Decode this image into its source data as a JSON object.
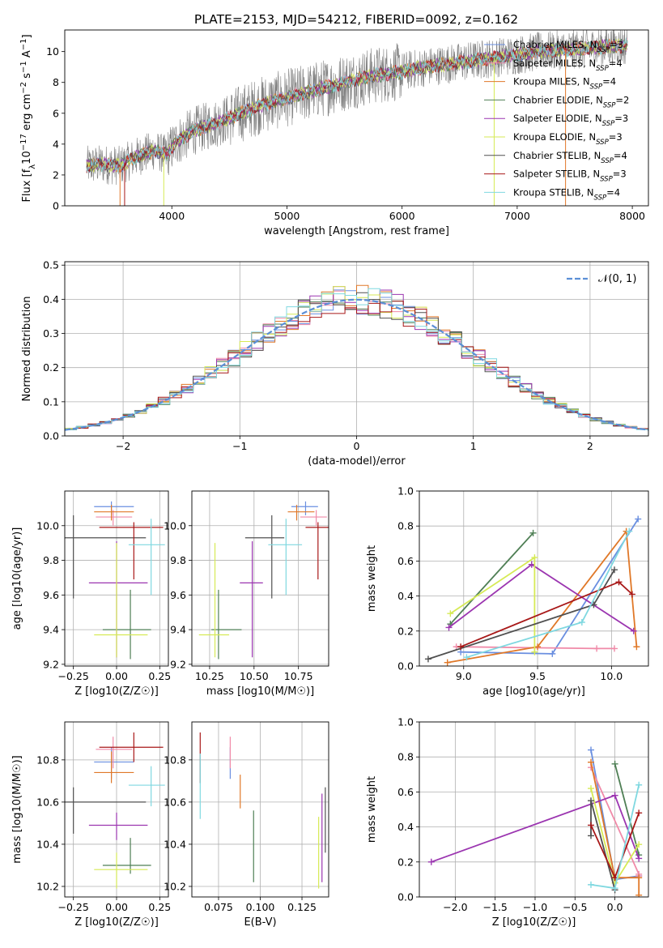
{
  "title": "PLATE=2153, MJD=54212, FIBERID=0092, z=0.162",
  "palette": {
    "Chabrier MILES": "#6a8fe0",
    "Salpeter MILES": "#f08aa8",
    "Kroupa MILES": "#e07828",
    "Chabrier ELODIE": "#4f7f55",
    "Salpeter ELODIE": "#9b35b0",
    "Kroupa ELODIE": "#d6ea55",
    "Chabrier STELIB": "#505050",
    "Salpeter STELIB": "#a81818",
    "Kroupa STELIB": "#7fd8e0",
    "data": "#808080",
    "gaussian": "#5b8fd6"
  },
  "chart_data": [
    {
      "id": "spectrum",
      "type": "line",
      "title": "PLATE=2153, MJD=54212, FIBERID=0092, z=0.162",
      "xlabel": "wavelength [Angstrom, rest frame]",
      "ylabel": "Flux [f_λ 10^-17 erg cm^-2 s^-1 A^-1]",
      "xlim": [
        3070,
        8140
      ],
      "ylim": [
        0,
        11.4
      ],
      "xticks": [
        4000,
        5000,
        6000,
        7000,
        8000
      ],
      "yticks": [
        0,
        2,
        4,
        6,
        8,
        10
      ],
      "legend_position": "top-right",
      "continuum_x": [
        3260,
        3400,
        3550,
        3700,
        3850,
        3950,
        4050,
        4200,
        4400,
        4600,
        4800,
        5000,
        5200,
        5400,
        5600,
        5800,
        6000,
        6200,
        6400,
        6600,
        6800,
        7000,
        7200,
        7400,
        7600,
        7800,
        7950
      ],
      "continuum_y": [
        2.6,
        2.7,
        2.6,
        3.2,
        3.6,
        3.3,
        4.2,
        4.9,
        5.4,
        6.0,
        6.6,
        7.0,
        7.4,
        7.8,
        8.2,
        8.5,
        8.7,
        9.0,
        9.2,
        9.4,
        9.6,
        9.8,
        10.0,
        10.1,
        10.2,
        10.35,
        10.4
      ],
      "series": [
        {
          "name": "Chabrier MILES, N_SSP=3"
        },
        {
          "name": "Salpeter MILES, N_SSP=4"
        },
        {
          "name": "Kroupa MILES, N_SSP=4"
        },
        {
          "name": "Chabrier ELODIE, N_SSP=2"
        },
        {
          "name": "Salpeter ELODIE, N_SSP=3"
        },
        {
          "name": "Kroupa ELODIE, N_SSP=3"
        },
        {
          "name": "Chabrier STELIB, N_SSP=4"
        },
        {
          "name": "Salpeter STELIB, N_SSP=3"
        },
        {
          "name": "Kroupa STELIB, N_SSP=4"
        }
      ]
    },
    {
      "id": "residuals",
      "type": "histogram",
      "xlabel": "(data-model)/error",
      "ylabel": "Normed distribution",
      "xlim": [
        -2.5,
        2.5
      ],
      "ylim": [
        0,
        0.51
      ],
      "xticks": [
        -2,
        -1,
        0,
        1,
        2
      ],
      "yticks": [
        0,
        0.1,
        0.2,
        0.3,
        0.4,
        0.5
      ],
      "bin_width": 0.1,
      "reference_curve": "N(0,1)",
      "legend": [
        {
          "name": "𝒩(0, 1)",
          "style": "dashed"
        }
      ],
      "legend_position": "top-right"
    },
    {
      "id": "age-vs-Z",
      "type": "errorbar",
      "xlabel": "Z [log10(Z/Z☉)]",
      "ylabel": "age [log10(age/yr)]",
      "xlim": [
        -0.3,
        0.3
      ],
      "ylim": [
        9.19,
        10.2
      ],
      "xticks": [
        -0.25,
        0.0,
        0.25
      ],
      "yticks": [
        9.2,
        9.4,
        9.6,
        9.8,
        10.0
      ],
      "points": [
        {
          "model": "Chabrier MILES",
          "x": -0.03,
          "xerr": [
            0.1,
            0.13
          ],
          "y": 10.11,
          "yerr": [
            0.05,
            0.03
          ]
        },
        {
          "model": "Salpeter MILES",
          "x": -0.02,
          "xerr": [
            0.1,
            0.11
          ],
          "y": 10.05,
          "yerr": [
            0.05,
            0.04
          ]
        },
        {
          "model": "Kroupa MILES",
          "x": -0.03,
          "xerr": [
            0.1,
            0.13
          ],
          "y": 10.08,
          "yerr": [
            0.05,
            0.04
          ]
        },
        {
          "model": "Chabrier ELODIE",
          "x": 0.08,
          "xerr": [
            0.16,
            0.12
          ],
          "y": 9.4,
          "yerr": [
            0.17,
            0.23
          ]
        },
        {
          "model": "Salpeter ELODIE",
          "x": 0.0,
          "xerr": [
            0.16,
            0.18
          ],
          "y": 9.67,
          "yerr": [
            0.43,
            0.24
          ]
        },
        {
          "model": "Kroupa ELODIE",
          "x": 0.0,
          "xerr": [
            0.13,
            0.18
          ],
          "y": 9.37,
          "yerr": [
            0.13,
            0.53
          ]
        },
        {
          "model": "Chabrier STELIB",
          "x": -0.25,
          "xerr": [
            0.05,
            0.42
          ],
          "y": 9.93,
          "yerr": [
            0.35,
            0.13
          ]
        },
        {
          "model": "Salpeter STELIB",
          "x": 0.1,
          "xerr": [
            0.2,
            0.17
          ],
          "y": 9.99,
          "yerr": [
            0.3,
            0.03
          ]
        },
        {
          "model": "Kroupa STELIB",
          "x": 0.2,
          "xerr": [
            0.13,
            0.08
          ],
          "y": 9.89,
          "yerr": [
            0.29,
            0.15
          ]
        }
      ]
    },
    {
      "id": "age-vs-mass",
      "type": "errorbar",
      "xlabel": "mass [log10(M/M☉)]",
      "ylabel": "",
      "xlim": [
        10.15,
        10.92
      ],
      "ylim": [
        9.19,
        10.2
      ],
      "xticks": [
        10.25,
        10.5,
        10.75
      ],
      "yticks": [
        9.2,
        9.4,
        9.6,
        9.8,
        10.0
      ],
      "points": [
        {
          "model": "Chabrier MILES",
          "x": 10.79,
          "xerr": [
            0.08,
            0.07
          ],
          "y": 10.11,
          "yerr": [
            0.05,
            0.03
          ]
        },
        {
          "model": "Salpeter MILES",
          "x": 10.85,
          "xerr": [
            0.09,
            0.06
          ],
          "y": 10.05,
          "yerr": [
            0.05,
            0.04
          ]
        },
        {
          "model": "Kroupa MILES",
          "x": 10.74,
          "xerr": [
            0.05,
            0.1
          ],
          "y": 10.08,
          "yerr": [
            0.05,
            0.04
          ]
        },
        {
          "model": "Chabrier ELODIE",
          "x": 10.3,
          "xerr": [
            0.04,
            0.13
          ],
          "y": 9.4,
          "yerr": [
            0.17,
            0.23
          ]
        },
        {
          "model": "Salpeter ELODIE",
          "x": 10.49,
          "xerr": [
            0.07,
            0.06
          ],
          "y": 9.67,
          "yerr": [
            0.43,
            0.24
          ]
        },
        {
          "model": "Kroupa ELODIE",
          "x": 10.28,
          "xerr": [
            0.09,
            0.08
          ],
          "y": 9.37,
          "yerr": [
            0.13,
            0.53
          ]
        },
        {
          "model": "Chabrier STELIB",
          "x": 10.6,
          "xerr": [
            0.15,
            0.07
          ],
          "y": 9.93,
          "yerr": [
            0.35,
            0.13
          ]
        },
        {
          "model": "Salpeter STELIB",
          "x": 10.86,
          "xerr": [
            0.07,
            0.07
          ],
          "y": 9.99,
          "yerr": [
            0.3,
            0.03
          ]
        },
        {
          "model": "Kroupa STELIB",
          "x": 10.68,
          "xerr": [
            0.1,
            0.09
          ],
          "y": 9.89,
          "yerr": [
            0.29,
            0.15
          ]
        }
      ]
    },
    {
      "id": "weight-vs-age",
      "type": "line",
      "xlabel": "age [log10(age/yr)]",
      "ylabel": "mass weight",
      "xlim": [
        8.7,
        10.25
      ],
      "ylim": [
        0,
        1
      ],
      "xticks": [
        9.0,
        9.5,
        10.0
      ],
      "yticks": [
        0.0,
        0.2,
        0.4,
        0.6,
        0.8,
        1.0
      ],
      "series": [
        {
          "model": "Chabrier MILES",
          "x": [
            8.98,
            9.6,
            10.18
          ],
          "y": [
            0.08,
            0.07,
            0.84
          ]
        },
        {
          "model": "Salpeter MILES",
          "x": [
            8.95,
            9.9,
            10.02
          ],
          "y": [
            0.11,
            0.1,
            0.1
          ]
        },
        {
          "model": "Kroupa MILES",
          "x": [
            8.89,
            9.5,
            10.1,
            10.17
          ],
          "y": [
            0.02,
            0.11,
            0.77,
            0.11
          ]
        },
        {
          "model": "Chabrier ELODIE",
          "x": [
            8.91,
            9.47
          ],
          "y": [
            0.24,
            0.76
          ]
        },
        {
          "model": "Salpeter ELODIE",
          "x": [
            8.9,
            9.46,
            10.15
          ],
          "y": [
            0.22,
            0.58,
            0.2
          ]
        },
        {
          "model": "Kroupa ELODIE",
          "x": [
            8.91,
            9.48,
            9.48
          ],
          "y": [
            0.3,
            0.62,
            0.08
          ]
        },
        {
          "model": "Chabrier STELIB",
          "x": [
            8.76,
            9.88,
            10.02
          ],
          "y": [
            0.04,
            0.35,
            0.55
          ]
        },
        {
          "model": "Salpeter STELIB",
          "x": [
            8.98,
            10.05,
            10.14
          ],
          "y": [
            0.11,
            0.48,
            0.41
          ]
        },
        {
          "model": "Kroupa STELIB",
          "x": [
            9.02,
            9.8,
            10.12
          ],
          "y": [
            0.05,
            0.25,
            0.77
          ]
        }
      ]
    },
    {
      "id": "mass-vs-Z",
      "type": "errorbar",
      "xlabel": "Z [log10(Z/Z☉)]",
      "ylabel": "mass [log10(M/M☉)]",
      "xlim": [
        -0.3,
        0.3
      ],
      "ylim": [
        10.15,
        10.98
      ],
      "xticks": [
        -0.25,
        0.0,
        0.25
      ],
      "yticks": [
        10.2,
        10.4,
        10.6,
        10.8
      ],
      "points": [
        {
          "model": "Chabrier MILES",
          "x": -0.03,
          "xerr": [
            0.1,
            0.13
          ],
          "y": 10.79,
          "yerr": [
            0.08,
            0.07
          ]
        },
        {
          "model": "Salpeter MILES",
          "x": -0.02,
          "xerr": [
            0.1,
            0.11
          ],
          "y": 10.85,
          "yerr": [
            0.09,
            0.06
          ]
        },
        {
          "model": "Kroupa MILES",
          "x": -0.03,
          "xerr": [
            0.1,
            0.13
          ],
          "y": 10.74,
          "yerr": [
            0.05,
            0.1
          ]
        },
        {
          "model": "Chabrier ELODIE",
          "x": 0.08,
          "xerr": [
            0.16,
            0.12
          ],
          "y": 10.3,
          "yerr": [
            0.04,
            0.13
          ]
        },
        {
          "model": "Salpeter ELODIE",
          "x": 0.0,
          "xerr": [
            0.16,
            0.18
          ],
          "y": 10.49,
          "yerr": [
            0.07,
            0.06
          ]
        },
        {
          "model": "Kroupa ELODIE",
          "x": 0.0,
          "xerr": [
            0.13,
            0.18
          ],
          "y": 10.28,
          "yerr": [
            0.09,
            0.08
          ]
        },
        {
          "model": "Chabrier STELIB",
          "x": -0.25,
          "xerr": [
            0.05,
            0.42
          ],
          "y": 10.6,
          "yerr": [
            0.15,
            0.07
          ]
        },
        {
          "model": "Salpeter STELIB",
          "x": 0.1,
          "xerr": [
            0.2,
            0.17
          ],
          "y": 10.86,
          "yerr": [
            0.07,
            0.07
          ]
        },
        {
          "model": "Kroupa STELIB",
          "x": 0.2,
          "xerr": [
            0.13,
            0.08
          ],
          "y": 10.68,
          "yerr": [
            0.1,
            0.09
          ]
        }
      ]
    },
    {
      "id": "mass-vs-ebv",
      "type": "errorbar",
      "xlabel": "E(B-V)",
      "ylabel": "",
      "xlim": [
        0.059,
        0.141
      ],
      "ylim": [
        10.15,
        10.98
      ],
      "xticks": [
        0.075,
        0.1,
        0.125
      ],
      "xticklabels": [
        "0.075",
        "0.100",
        "0.125"
      ],
      "yticks": [
        10.2,
        10.4,
        10.6,
        10.8
      ],
      "points": [
        {
          "model": "Chabrier MILES",
          "x": 0.082,
          "y": 10.79,
          "yerr": [
            0.08,
            0.07
          ]
        },
        {
          "model": "Salpeter MILES",
          "x": 0.082,
          "y": 10.85,
          "yerr": [
            0.09,
            0.06
          ]
        },
        {
          "model": "Kroupa MILES",
          "x": 0.088,
          "y": 10.68,
          "yerr": [
            0.11,
            0.05
          ]
        },
        {
          "model": "Chabrier ELODIE",
          "x": 0.096,
          "y": 10.39,
          "yerr": [
            0.17,
            0.17
          ]
        },
        {
          "model": "Salpeter ELODIE",
          "x": 0.137,
          "y": 10.52,
          "yerr": [
            0.3,
            0.12
          ]
        },
        {
          "model": "Kroupa ELODIE",
          "x": 0.135,
          "y": 10.36,
          "yerr": [
            0.17,
            0.17
          ]
        },
        {
          "model": "Chabrier STELIB",
          "x": 0.139,
          "y": 10.52,
          "yerr": [
            0.16,
            0.15
          ]
        },
        {
          "model": "Salpeter STELIB",
          "x": 0.064,
          "y": 10.84,
          "yerr": [
            0.15,
            0.09
          ]
        },
        {
          "model": "Kroupa STELIB",
          "x": 0.064,
          "y": 10.68,
          "yerr": [
            0.16,
            0.15
          ]
        }
      ]
    },
    {
      "id": "weight-vs-Z",
      "type": "line",
      "xlabel": "Z [log10(Z/Z☉)]",
      "ylabel": "mass weight",
      "xlim": [
        -2.45,
        0.42
      ],
      "ylim": [
        0,
        1
      ],
      "xticks": [
        -2.0,
        -1.5,
        -1.0,
        -0.5,
        0.0
      ],
      "yticks": [
        0.0,
        0.2,
        0.4,
        0.6,
        0.8,
        1.0
      ],
      "series": [
        {
          "model": "Chabrier MILES",
          "x": [
            -0.3,
            0.0,
            0.3
          ],
          "y": [
            0.84,
            0.1,
            0.12
          ]
        },
        {
          "model": "Salpeter MILES",
          "x": [
            -0.3,
            0.3,
            0.3
          ],
          "y": [
            0.74,
            0.13,
            0.12
          ]
        },
        {
          "model": "Kroupa MILES",
          "x": [
            -0.3,
            0.0,
            0.3,
            0.3
          ],
          "y": [
            0.77,
            0.11,
            0.11,
            0.01
          ]
        },
        {
          "model": "Chabrier ELODIE",
          "x": [
            0.0,
            0.3
          ],
          "y": [
            0.76,
            0.24
          ]
        },
        {
          "model": "Salpeter ELODIE",
          "x": [
            -2.3,
            0.0,
            0.3
          ],
          "y": [
            0.2,
            0.58,
            0.22
          ]
        },
        {
          "model": "Kroupa ELODIE",
          "x": [
            -0.3,
            0.0,
            0.3
          ],
          "y": [
            0.62,
            0.08,
            0.3
          ]
        },
        {
          "model": "Chabrier STELIB",
          "x": [
            -0.3,
            -0.3,
            0.0
          ],
          "y": [
            0.35,
            0.55,
            0.04
          ]
        },
        {
          "model": "Salpeter STELIB",
          "x": [
            -0.3,
            0.0,
            0.3
          ],
          "y": [
            0.41,
            0.11,
            0.48
          ]
        },
        {
          "model": "Kroupa STELIB",
          "x": [
            -0.3,
            0.0,
            0.3
          ],
          "y": [
            0.07,
            0.05,
            0.64
          ]
        }
      ]
    }
  ]
}
